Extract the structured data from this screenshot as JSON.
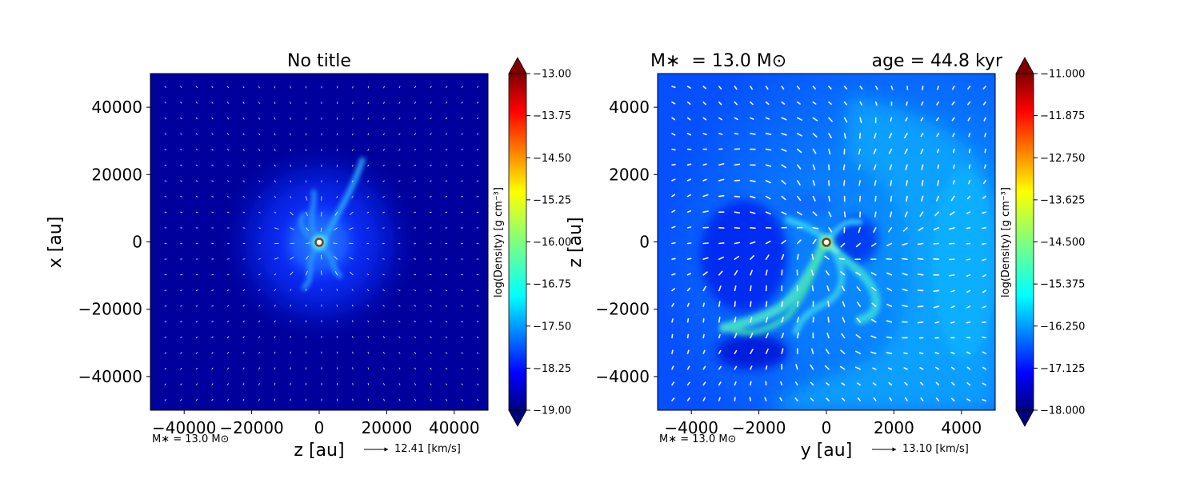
{
  "chart_data": [
    {
      "type": "heatmap",
      "title": "No title",
      "xlabel": "z [au]",
      "ylabel": "x [au]",
      "xlim": [
        -50000,
        50000
      ],
      "ylim": [
        -50000,
        50000
      ],
      "xticks": [
        -40000,
        -20000,
        0,
        20000,
        40000
      ],
      "yticks": [
        -40000,
        -20000,
        0,
        20000,
        40000
      ],
      "colorbar": {
        "label": "log(Density) [g cm$^{-3}$]",
        "label_display": "log(Density) [g cm⁻³]",
        "range": [
          -19.0,
          -13.0
        ],
        "ticks": [
          "−13.00",
          "−13.75",
          "−14.50",
          "−15.25",
          "−16.00",
          "−16.75",
          "−17.50",
          "−18.25",
          "−19.00"
        ],
        "colormap": "jet"
      },
      "star_mass_note": "M∗ = 13.0 M⊙",
      "velocity_key": "12.41 [km/s]",
      "star_position": [
        0,
        0
      ]
    },
    {
      "type": "heatmap",
      "title_left": "M∗  = 13.0 M⊙",
      "title_right": "age = 44.8 kyr",
      "xlabel": "y [au]",
      "ylabel": "z [au]",
      "xlim": [
        -5000,
        5000
      ],
      "ylim": [
        -5000,
        5000
      ],
      "xticks": [
        -4000,
        -2000,
        0,
        2000,
        4000
      ],
      "yticks": [
        -4000,
        -2000,
        0,
        2000,
        4000
      ],
      "colorbar": {
        "label": "log(Density) [g cm$^{-3}$]",
        "label_display": "log(Density) [g cm⁻³]",
        "range": [
          -18.0,
          -11.0
        ],
        "ticks": [
          "−11.000",
          "−11.875",
          "−12.750",
          "−13.625",
          "−14.500",
          "−15.375",
          "−16.250",
          "−17.125",
          "−18.000"
        ],
        "colormap": "jet"
      },
      "star_mass_note": "M∗ = 13.0 M⊙",
      "velocity_key": "13.10 [km/s]",
      "star_position": [
        0,
        0
      ]
    }
  ],
  "colors": {
    "jet": [
      "#00007f",
      "#0000ff",
      "#007fff",
      "#00ffff",
      "#7fff7f",
      "#ffff00",
      "#ff7f00",
      "#ff0000",
      "#7f0000"
    ],
    "axis": "#000000",
    "vector": "#ffffff",
    "star_fill": "#ffffff",
    "star_edge": "#7a5a1a"
  }
}
